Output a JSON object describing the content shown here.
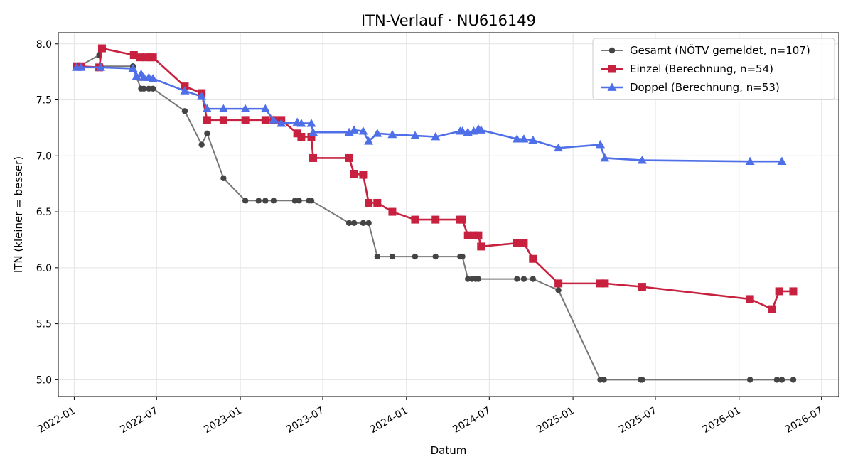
{
  "chart_data": {
    "type": "line",
    "title": "ITN-Verlauf · NU616149",
    "xlabel": "Datum",
    "ylabel": "ITN  (kleiner = besser)",
    "x_axis_type": "date",
    "xlim": [
      "2021-11-27",
      "2026-08-08"
    ],
    "ylim": [
      4.85,
      8.1
    ],
    "x_ticks": [
      "2022-01",
      "2022-07",
      "2023-01",
      "2023-07",
      "2024-01",
      "2024-07",
      "2025-01",
      "2025-07",
      "2026-01",
      "2026-07"
    ],
    "y_ticks": [
      "5.0",
      "5.5",
      "6.0",
      "6.5",
      "7.0",
      "7.5",
      "8.0"
    ],
    "grid": true,
    "legend_position": "top-right",
    "series": [
      {
        "name": "Gesamt (NÖTV gemeldet, n=107)",
        "color": "#777777",
        "marker_color": "#444444",
        "marker": "circle",
        "points": [
          [
            "2022-01-06",
            7.8
          ],
          [
            "2022-01-12",
            7.8
          ],
          [
            "2022-02-25",
            7.9
          ],
          [
            "2022-02-28",
            7.8
          ],
          [
            "2022-05-10",
            7.8
          ],
          [
            "2022-05-18",
            7.7
          ],
          [
            "2022-05-28",
            7.6
          ],
          [
            "2022-06-03",
            7.6
          ],
          [
            "2022-06-14",
            7.6
          ],
          [
            "2022-06-23",
            7.6
          ],
          [
            "2022-09-01",
            7.4
          ],
          [
            "2022-10-08",
            7.1
          ],
          [
            "2022-10-20",
            7.2
          ],
          [
            "2022-11-25",
            6.8
          ],
          [
            "2023-01-12",
            6.6
          ],
          [
            "2023-02-10",
            6.6
          ],
          [
            "2023-02-25",
            6.6
          ],
          [
            "2023-03-15",
            6.6
          ],
          [
            "2023-05-01",
            6.6
          ],
          [
            "2023-05-10",
            6.6
          ],
          [
            "2023-06-01",
            6.6
          ],
          [
            "2023-06-06",
            6.6
          ],
          [
            "2023-08-28",
            6.4
          ],
          [
            "2023-09-08",
            6.4
          ],
          [
            "2023-09-28",
            6.4
          ],
          [
            "2023-10-10",
            6.4
          ],
          [
            "2023-10-29",
            6.1
          ],
          [
            "2023-12-01",
            6.1
          ],
          [
            "2024-01-20",
            6.1
          ],
          [
            "2024-03-05",
            6.1
          ],
          [
            "2024-04-28",
            6.1
          ],
          [
            "2024-05-03",
            6.1
          ],
          [
            "2024-05-15",
            5.9
          ],
          [
            "2024-05-24",
            5.9
          ],
          [
            "2024-06-01",
            5.9
          ],
          [
            "2024-06-07",
            5.9
          ],
          [
            "2024-08-31",
            5.9
          ],
          [
            "2024-09-15",
            5.9
          ],
          [
            "2024-10-05",
            5.9
          ],
          [
            "2024-11-30",
            5.8
          ],
          [
            "2025-03-02",
            5.0
          ],
          [
            "2025-03-10",
            5.0
          ],
          [
            "2025-05-30",
            5.0
          ],
          [
            "2025-06-02",
            5.0
          ],
          [
            "2026-01-25",
            5.0
          ],
          [
            "2026-03-25",
            5.0
          ],
          [
            "2026-04-05",
            5.0
          ],
          [
            "2026-04-30",
            5.0
          ]
        ]
      },
      {
        "name": "Einzel (Berechnung, n=54)",
        "color": "#c8203f",
        "marker": "square",
        "points": [
          [
            "2022-01-06",
            7.8
          ],
          [
            "2022-01-16",
            7.8
          ],
          [
            "2022-02-25",
            7.79
          ],
          [
            "2022-03-03",
            7.96
          ],
          [
            "2022-05-12",
            7.9
          ],
          [
            "2022-05-25",
            7.88
          ],
          [
            "2022-06-07",
            7.88
          ],
          [
            "2022-06-17",
            7.88
          ],
          [
            "2022-06-23",
            7.88
          ],
          [
            "2022-09-01",
            7.62
          ],
          [
            "2022-10-08",
            7.56
          ],
          [
            "2022-10-20",
            7.32
          ],
          [
            "2022-11-25",
            7.32
          ],
          [
            "2023-01-12",
            7.32
          ],
          [
            "2023-02-25",
            7.32
          ],
          [
            "2023-03-15",
            7.32
          ],
          [
            "2023-04-01",
            7.32
          ],
          [
            "2023-05-06",
            7.2
          ],
          [
            "2023-05-15",
            7.17
          ],
          [
            "2023-06-06",
            7.17
          ],
          [
            "2023-06-10",
            6.98
          ],
          [
            "2023-08-28",
            6.98
          ],
          [
            "2023-09-08",
            6.84
          ],
          [
            "2023-09-28",
            6.83
          ],
          [
            "2023-10-10",
            6.58
          ],
          [
            "2023-10-29",
            6.58
          ],
          [
            "2023-12-01",
            6.5
          ],
          [
            "2024-01-20",
            6.43
          ],
          [
            "2024-03-05",
            6.43
          ],
          [
            "2024-04-28",
            6.43
          ],
          [
            "2024-05-03",
            6.43
          ],
          [
            "2024-05-15",
            6.29
          ],
          [
            "2024-05-28",
            6.29
          ],
          [
            "2024-06-07",
            6.29
          ],
          [
            "2024-06-13",
            6.19
          ],
          [
            "2024-08-31",
            6.22
          ],
          [
            "2024-09-15",
            6.22
          ],
          [
            "2024-10-05",
            6.08
          ],
          [
            "2024-11-30",
            5.86
          ],
          [
            "2025-03-02",
            5.86
          ],
          [
            "2025-03-12",
            5.86
          ],
          [
            "2025-06-02",
            5.83
          ],
          [
            "2026-01-25",
            5.72
          ],
          [
            "2026-03-15",
            5.63
          ],
          [
            "2026-03-30",
            5.79
          ],
          [
            "2026-04-30",
            5.79
          ]
        ]
      },
      {
        "name": "Doppel (Berechnung, n=53)",
        "color": "#4f6fe8",
        "marker": "triangle",
        "points": [
          [
            "2022-01-06",
            7.79
          ],
          [
            "2022-01-16",
            7.79
          ],
          [
            "2022-02-28",
            7.79
          ],
          [
            "2022-05-10",
            7.78
          ],
          [
            "2022-05-18",
            7.71
          ],
          [
            "2022-05-28",
            7.73
          ],
          [
            "2022-06-03",
            7.7
          ],
          [
            "2022-06-14",
            7.7
          ],
          [
            "2022-06-23",
            7.69
          ],
          [
            "2022-09-01",
            7.58
          ],
          [
            "2022-10-08",
            7.53
          ],
          [
            "2022-10-20",
            7.42
          ],
          [
            "2022-11-25",
            7.42
          ],
          [
            "2023-01-12",
            7.42
          ],
          [
            "2023-02-25",
            7.42
          ],
          [
            "2023-03-15",
            7.32
          ],
          [
            "2023-04-01",
            7.29
          ],
          [
            "2023-05-06",
            7.3
          ],
          [
            "2023-05-15",
            7.29
          ],
          [
            "2023-06-06",
            7.29
          ],
          [
            "2023-06-10",
            7.21
          ],
          [
            "2023-08-28",
            7.21
          ],
          [
            "2023-09-08",
            7.23
          ],
          [
            "2023-09-28",
            7.22
          ],
          [
            "2023-10-10",
            7.13
          ],
          [
            "2023-10-29",
            7.2
          ],
          [
            "2023-12-01",
            7.19
          ],
          [
            "2024-01-20",
            7.18
          ],
          [
            "2024-03-05",
            7.17
          ],
          [
            "2024-04-28",
            7.22
          ],
          [
            "2024-05-03",
            7.22
          ],
          [
            "2024-05-15",
            7.21
          ],
          [
            "2024-05-28",
            7.22
          ],
          [
            "2024-06-07",
            7.24
          ],
          [
            "2024-06-13",
            7.23
          ],
          [
            "2024-08-31",
            7.15
          ],
          [
            "2024-09-15",
            7.15
          ],
          [
            "2024-10-05",
            7.14
          ],
          [
            "2024-11-30",
            7.07
          ],
          [
            "2025-03-02",
            7.1
          ],
          [
            "2025-03-12",
            6.98
          ],
          [
            "2025-06-02",
            6.96
          ],
          [
            "2026-01-25",
            6.95
          ],
          [
            "2026-04-05",
            6.95
          ]
        ]
      }
    ]
  }
}
